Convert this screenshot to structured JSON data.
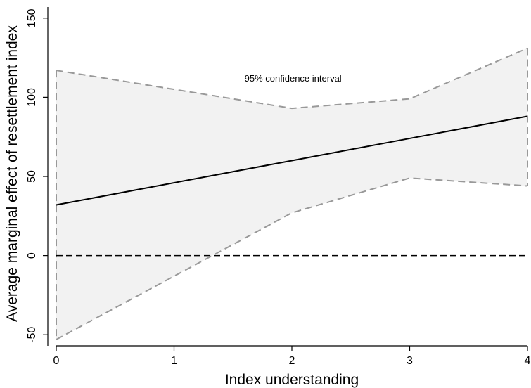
{
  "chart_data": {
    "type": "line",
    "xlabel": "Index understanding",
    "ylabel": "Average marginal effect of resettlement index",
    "xlim": [
      0,
      4
    ],
    "ylim": [
      -57,
      157
    ],
    "x_ticks": [
      0,
      1,
      2,
      3,
      4
    ],
    "y_ticks": [
      -50,
      0,
      50,
      100,
      150
    ],
    "x": [
      0,
      2,
      3,
      4
    ],
    "series": [
      {
        "role": "estimate",
        "values": [
          32,
          60,
          74,
          88
        ],
        "style": "solid",
        "color": "#000000"
      }
    ],
    "band": {
      "upper": [
        117,
        93,
        99,
        131
      ],
      "lower": [
        -53,
        27,
        49,
        44
      ],
      "fill": "#f2f2f2",
      "edge_color": "#999999",
      "edge_style": "dashed"
    },
    "reference_line": {
      "y": 0,
      "style": "dashed",
      "color": "#000000"
    },
    "annotations": [
      {
        "text": "95% confidence interval",
        "x": 2.01,
        "y": 110
      }
    ],
    "grid": false,
    "legend": "none"
  }
}
